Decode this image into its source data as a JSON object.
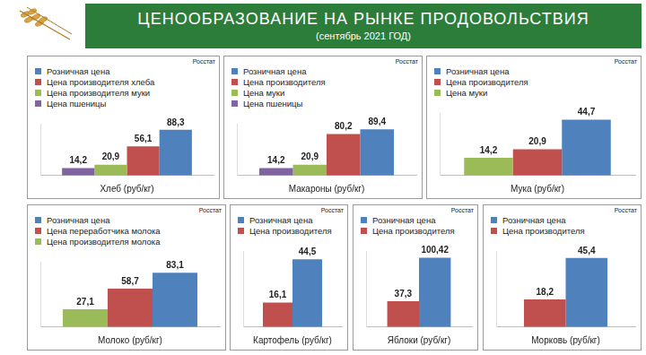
{
  "title": "ЦЕНООБРАЗОВАНИЕ НА РЫНКЕ ПРОДОВОЛЬСТВИЯ",
  "subtitle": "(сентябрь 2021 ГОД)",
  "chart_data": [
    {
      "type": "bar",
      "x_label": "Хлеб (руб/кг)",
      "annotations": [
        "Росстат"
      ],
      "categories": [
        null
      ],
      "series": [
        {
          "name": "Цена пшеницы",
          "color": "#8064a2",
          "values": [
            14.2
          ],
          "value_labels": [
            "14,2"
          ]
        },
        {
          "name": "Цена производителя муки",
          "color": "#9bbb59",
          "values": [
            20.9
          ],
          "value_labels": [
            "20,9"
          ]
        },
        {
          "name": "Цена производителя хлеба",
          "color": "#c0504d",
          "values": [
            56.1
          ],
          "value_labels": [
            "56,1"
          ]
        },
        {
          "name": "Розничная цена",
          "color": "#4f81bd",
          "values": [
            88.3
          ],
          "value_labels": [
            "88,3"
          ]
        }
      ],
      "ylim": [
        0,
        100
      ],
      "grid": false,
      "tick_labels": false,
      "data_labels": true
    },
    {
      "type": "bar",
      "x_label": "Макароны (руб/кг)",
      "annotations": [
        "Росстат"
      ],
      "categories": [
        null
      ],
      "series": [
        {
          "name": "Цена пшеницы",
          "color": "#8064a2",
          "values": [
            14.2
          ],
          "value_labels": [
            "14,2"
          ]
        },
        {
          "name": "Цена муки",
          "color": "#9bbb59",
          "values": [
            20.9
          ],
          "value_labels": [
            "20,9"
          ]
        },
        {
          "name": "Цена производителя",
          "color": "#c0504d",
          "values": [
            80.2
          ],
          "value_labels": [
            "80,2"
          ]
        },
        {
          "name": "Розничная цена",
          "color": "#4f81bd",
          "values": [
            89.4
          ],
          "value_labels": [
            "89,4"
          ]
        }
      ],
      "ylim": [
        0,
        100
      ],
      "grid": false,
      "tick_labels": false,
      "data_labels": true
    },
    {
      "type": "bar",
      "x_label": "Мука (руб/кг)",
      "annotations": [
        "Росстат"
      ],
      "categories": [
        null
      ],
      "series": [
        {
          "name": "Цена муки",
          "color": "#9bbb59",
          "values": [
            14.2
          ],
          "value_labels": [
            "14,2"
          ]
        },
        {
          "name": "Цена производителя",
          "color": "#c0504d",
          "values": [
            20.9
          ],
          "value_labels": [
            "20,9"
          ]
        },
        {
          "name": "Розничная цена",
          "color": "#4f81bd",
          "values": [
            44.7
          ],
          "value_labels": [
            "44,7"
          ]
        }
      ],
      "ylim": [
        0,
        50
      ],
      "grid": false,
      "tick_labels": false,
      "data_labels": true
    },
    {
      "type": "bar",
      "x_label": "Молоко (руб/кг)",
      "annotations": [
        "Росстат"
      ],
      "categories": [
        null
      ],
      "series": [
        {
          "name": "Цена производителя молока",
          "color": "#9bbb59",
          "values": [
            27.1
          ],
          "value_labels": [
            "27,1"
          ]
        },
        {
          "name": "Цена переработчика молока",
          "color": "#c0504d",
          "values": [
            58.7
          ],
          "value_labels": [
            "58,7"
          ]
        },
        {
          "name": "Розничная цена",
          "color": "#4f81bd",
          "values": [
            83.1
          ],
          "value_labels": [
            "83,1"
          ]
        }
      ],
      "ylim": [
        0,
        100
      ],
      "grid": false,
      "tick_labels": false,
      "data_labels": true
    },
    {
      "type": "bar",
      "x_label": "Картофель (руб/кг)",
      "annotations": [
        "Росстат"
      ],
      "categories": [
        null
      ],
      "series": [
        {
          "name": "Цена производителя",
          "color": "#c0504d",
          "values": [
            16.1
          ],
          "value_labels": [
            "16,1"
          ]
        },
        {
          "name": "Розничная цена",
          "color": "#4f81bd",
          "values": [
            44.5
          ],
          "value_labels": [
            "44,5"
          ]
        }
      ],
      "ylim": [
        0,
        50
      ],
      "grid": false,
      "tick_labels": false,
      "data_labels": true
    },
    {
      "type": "bar",
      "x_label": "Яблоки (руб/кг)",
      "annotations": [
        "Росстат"
      ],
      "categories": [
        null
      ],
      "series": [
        {
          "name": "Цена производителя",
          "color": "#c0504d",
          "values": [
            37.3
          ],
          "value_labels": [
            "37,3"
          ]
        },
        {
          "name": "Розничная цена",
          "color": "#4f81bd",
          "values": [
            100.42
          ],
          "value_labels": [
            "100,42"
          ]
        }
      ],
      "ylim": [
        0,
        110
      ],
      "grid": false,
      "tick_labels": false,
      "data_labels": true
    },
    {
      "type": "bar",
      "x_label": "Морковь (руб/кг)",
      "annotations": [
        "Росстат"
      ],
      "categories": [
        null
      ],
      "series": [
        {
          "name": "Цена производителя",
          "color": "#c0504d",
          "values": [
            18.2
          ],
          "value_labels": [
            "18,2"
          ]
        },
        {
          "name": "Розничная цена",
          "color": "#4f81bd",
          "values": [
            45.4
          ],
          "value_labels": [
            "45,4"
          ]
        }
      ],
      "ylim": [
        0,
        50
      ],
      "grid": false,
      "tick_labels": false,
      "data_labels": true
    }
  ]
}
